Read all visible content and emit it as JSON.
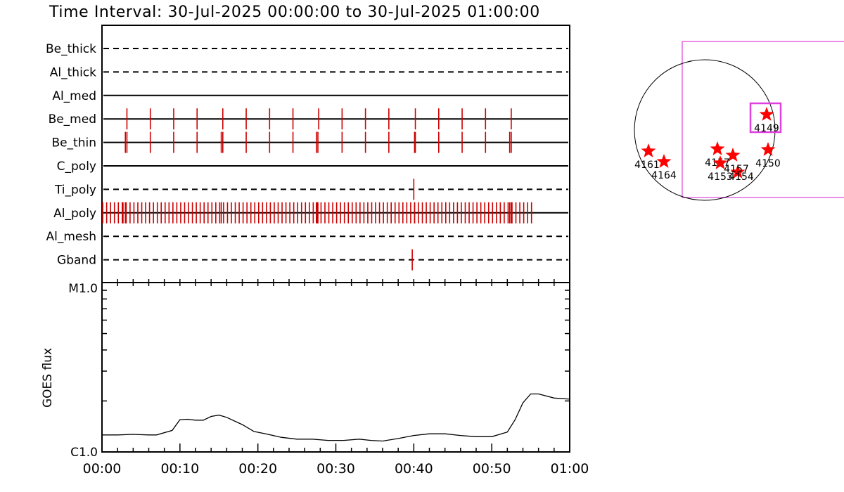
{
  "title": "Time Interval: 30-Jul-2025 00:00:00 to 30-Jul-2025 01:00:00",
  "colors": {
    "event": "#cc0000",
    "star": "#ff0000",
    "box": "#e040e0",
    "axis": "#000000"
  },
  "chart_data": [
    {
      "type": "event-timeline",
      "x_unit": "minutes after 00:00",
      "xlim": [
        0,
        60
      ],
      "x_ticks": [
        "00:00",
        "00:10",
        "00:20",
        "00:30",
        "00:40",
        "00:50",
        "01:00"
      ],
      "channels": [
        {
          "name": "Be_thick",
          "style": "dashed",
          "events": []
        },
        {
          "name": "Al_thick",
          "style": "dashed",
          "events": []
        },
        {
          "name": "Al_med",
          "style": "solid",
          "events": []
        },
        {
          "name": "Be_med",
          "style": "solid",
          "events": [
            3.2,
            6.2,
            9.2,
            12.2,
            15.5,
            18.5,
            21.5,
            24.5,
            27.8,
            30.8,
            33.8,
            36.8,
            40.2,
            43.2,
            46.2,
            49.2,
            52.5
          ]
        },
        {
          "name": "Be_thin",
          "style": "solid",
          "events": [
            3.0,
            3.2,
            6.2,
            9.2,
            12.2,
            15.3,
            15.5,
            18.5,
            21.5,
            24.5,
            27.5,
            27.7,
            30.8,
            33.8,
            36.8,
            40.1,
            40.2,
            43.2,
            46.2,
            49.2,
            52.3,
            52.5
          ]
        },
        {
          "name": "C_poly",
          "style": "solid",
          "events": []
        },
        {
          "name": "Ti_poly",
          "style": "dashed",
          "events": [
            40
          ]
        },
        {
          "name": "Al_poly",
          "style": "solid",
          "events_range": [
            0.1,
            55.3
          ],
          "events_step": 0.5,
          "events_dense": [
            2.7,
            3.0,
            15.3,
            27.5,
            27.7,
            40.1,
            52.3,
            52.5
          ]
        },
        {
          "name": "Al_mesh",
          "style": "dashed",
          "events": []
        },
        {
          "name": "Gband",
          "style": "dashed",
          "events": [
            39.8
          ]
        }
      ]
    },
    {
      "type": "line",
      "ylabel": "GOES flux",
      "y_scale": "log",
      "y_tick_labels": [
        "C1.0",
        "M1.0"
      ],
      "ylim": [
        "C1.0",
        "M1.0"
      ],
      "xlim": [
        0,
        60
      ],
      "x_ticks": [
        "00:00",
        "00:10",
        "00:20",
        "00:30",
        "00:40",
        "00:50",
        "01:00"
      ],
      "x": [
        0,
        2,
        4,
        6,
        7,
        9,
        10,
        11,
        12,
        13,
        14,
        15,
        16,
        18,
        19.5,
        21,
        23,
        25,
        27,
        29,
        31,
        33,
        34.5,
        36,
        38,
        40,
        42,
        44,
        46,
        48,
        50,
        52,
        53,
        54,
        55,
        56,
        58,
        60
      ],
      "values": [
        1.26,
        1.26,
        1.27,
        1.26,
        1.26,
        1.34,
        1.55,
        1.56,
        1.54,
        1.54,
        1.62,
        1.65,
        1.6,
        1.45,
        1.32,
        1.28,
        1.22,
        1.19,
        1.19,
        1.17,
        1.17,
        1.19,
        1.17,
        1.16,
        1.2,
        1.25,
        1.28,
        1.28,
        1.25,
        1.23,
        1.23,
        1.31,
        1.55,
        1.95,
        2.2,
        2.2,
        2.08,
        2.05
      ]
    },
    {
      "type": "solar-disk-map",
      "regions": [
        {
          "id": "4149",
          "lon": 0.88,
          "lat": 0.22,
          "highlight": true
        },
        {
          "id": "4150",
          "lon": 0.9,
          "lat": -0.28
        },
        {
          "id": "4161",
          "lon": -0.8,
          "lat": -0.3
        },
        {
          "id": "4164",
          "lon": -0.58,
          "lat": -0.45
        },
        {
          "id": "4157",
          "lon": 0.18,
          "lat": -0.27
        },
        {
          "id": "4153",
          "lon": 0.47,
          "lat": -0.6
        },
        {
          "id": "4154",
          "lon": 0.4,
          "lat": -0.36
        },
        {
          "id": "4157",
          "lon": 0.22,
          "lat": -0.47
        }
      ],
      "labels": [
        "4149",
        "4150",
        "4161",
        "4164",
        "4157",
        "4154",
        "4157",
        "4153"
      ]
    }
  ]
}
